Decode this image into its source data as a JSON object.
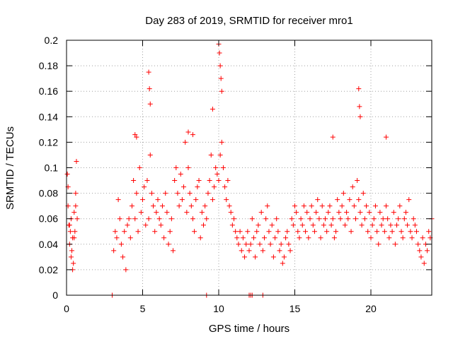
{
  "chart_data": {
    "type": "scatter",
    "title": "Day 283 of 2019, SRMTID for receiver mro1",
    "xlabel": "GPS time / hours",
    "ylabel": "SRMTID / TECUs",
    "xlim": [
      0,
      24
    ],
    "ylim": [
      0,
      0.2
    ],
    "x_ticks": [
      0,
      5,
      10,
      15,
      20
    ],
    "x_tick_labels": [
      "0",
      "5",
      "10",
      "15",
      "20"
    ],
    "y_ticks": [
      0,
      0.02,
      0.04,
      0.06,
      0.08,
      0.1,
      0.12,
      0.14,
      0.16,
      0.18,
      0.2
    ],
    "y_tick_labels": [
      "0",
      "0.02",
      "0.04",
      "0.06",
      "0.08",
      "0.1",
      "0.12",
      "0.14",
      "0.16",
      "0.18",
      "0.2"
    ],
    "grid": true,
    "marker": "+",
    "color": "#ff0000",
    "series": [
      {
        "name": "SRMTID",
        "x": [
          0.05,
          0.1,
          0.15,
          0.2,
          0.25,
          0.3,
          0.35,
          0.4,
          0.45,
          0.5,
          0.55,
          0.6,
          0.65,
          0.7,
          0.1,
          0.3,
          0.5,
          0.6,
          0.4,
          0.2,
          3.1,
          3.2,
          3.3,
          3.4,
          3.5,
          3.6,
          3.7,
          3.8,
          3.9,
          4.0,
          4.1,
          4.2,
          4.3,
          4.4,
          4.5,
          4.6,
          4.7,
          4.8,
          4.9,
          5.0,
          5.1,
          5.2,
          5.3,
          5.4,
          5.5,
          5.6,
          5.7,
          5.8,
          5.9,
          6.0,
          6.1,
          6.2,
          6.3,
          6.4,
          6.5,
          6.6,
          6.7,
          6.8,
          6.9,
          7.0,
          7.1,
          7.2,
          7.3,
          7.4,
          7.5,
          7.6,
          7.7,
          7.8,
          7.9,
          8.0,
          8.1,
          8.2,
          8.3,
          8.4,
          8.5,
          8.6,
          8.7,
          8.8,
          8.9,
          9.0,
          9.1,
          9.2,
          9.3,
          9.4,
          9.5,
          9.6,
          9.7,
          9.8,
          9.9,
          10.0,
          10.1,
          10.2,
          10.3,
          10.4,
          10.5,
          10.6,
          10.7,
          10.8,
          10.9,
          11.0,
          11.1,
          11.2,
          11.3,
          11.4,
          11.5,
          11.6,
          11.7,
          11.8,
          11.9,
          12.0,
          12.1,
          12.2,
          12.3,
          12.4,
          12.5,
          12.6,
          12.7,
          12.8,
          12.9,
          13.0,
          13.1,
          13.2,
          13.3,
          13.4,
          13.5,
          13.6,
          13.7,
          13.8,
          13.9,
          14.0,
          14.1,
          14.2,
          14.3,
          14.4,
          14.5,
          14.6,
          14.7,
          14.8,
          14.9,
          15.0,
          15.1,
          15.2,
          15.3,
          15.4,
          15.5,
          15.6,
          15.7,
          15.8,
          15.9,
          16.0,
          16.1,
          16.2,
          16.3,
          16.4,
          16.5,
          16.6,
          16.7,
          16.8,
          16.9,
          17.0,
          17.1,
          17.2,
          17.3,
          17.4,
          17.5,
          17.6,
          17.7,
          17.8,
          17.9,
          18.0,
          18.1,
          18.2,
          18.3,
          18.4,
          18.5,
          18.6,
          18.7,
          18.8,
          18.9,
          19.0,
          19.1,
          19.2,
          19.3,
          19.4,
          19.5,
          19.6,
          19.7,
          19.8,
          19.9,
          20.0,
          20.1,
          20.2,
          20.3,
          20.4,
          20.5,
          20.6,
          20.7,
          20.8,
          20.9,
          21.0,
          21.1,
          21.2,
          21.3,
          21.4,
          21.5,
          21.6,
          21.7,
          21.8,
          21.9,
          22.0,
          22.1,
          22.2,
          22.3,
          22.4,
          22.5,
          22.6,
          22.7,
          22.8,
          22.9,
          23.0,
          23.1,
          23.2,
          23.3,
          23.4,
          23.5,
          23.6,
          23.7,
          23.8,
          23.9,
          24.0,
          5.4,
          5.45,
          5.5,
          10.0,
          10.05,
          10.1,
          10.15,
          10.2,
          9.6,
          19.2,
          19.25,
          19.3,
          17.5,
          21.0,
          8.0,
          8.3,
          4.5,
          4.6,
          3.0,
          12.0,
          12.1,
          12.2,
          9.2,
          12.9
        ],
        "y": [
          0.095,
          0.07,
          0.055,
          0.04,
          0.05,
          0.06,
          0.035,
          0.045,
          0.025,
          0.065,
          0.05,
          0.08,
          0.105,
          0.06,
          0.085,
          0.03,
          0.045,
          0.07,
          0.02,
          0.055,
          0.035,
          0.05,
          0.045,
          0.075,
          0.06,
          0.04,
          0.03,
          0.05,
          0.02,
          0.055,
          0.06,
          0.045,
          0.07,
          0.09,
          0.06,
          0.08,
          0.05,
          0.1,
          0.065,
          0.075,
          0.085,
          0.055,
          0.09,
          0.06,
          0.11,
          0.08,
          0.07,
          0.05,
          0.065,
          0.075,
          0.06,
          0.055,
          0.07,
          0.045,
          0.08,
          0.065,
          0.04,
          0.05,
          0.06,
          0.035,
          0.09,
          0.1,
          0.08,
          0.07,
          0.095,
          0.075,
          0.085,
          0.12,
          0.065,
          0.1,
          0.08,
          0.07,
          0.06,
          0.05,
          0.075,
          0.085,
          0.09,
          0.045,
          0.065,
          0.055,
          0.07,
          0.06,
          0.08,
          0.09,
          0.11,
          0.075,
          0.085,
          0.1,
          0.095,
          0.09,
          0.11,
          0.12,
          0.1,
          0.085,
          0.075,
          0.09,
          0.07,
          0.065,
          0.055,
          0.06,
          0.05,
          0.045,
          0.04,
          0.05,
          0.035,
          0.045,
          0.03,
          0.04,
          0.05,
          0.035,
          0.04,
          0.06,
          0.045,
          0.03,
          0.05,
          0.055,
          0.04,
          0.065,
          0.035,
          0.045,
          0.06,
          0.07,
          0.05,
          0.04,
          0.055,
          0.03,
          0.045,
          0.06,
          0.05,
          0.035,
          0.04,
          0.025,
          0.03,
          0.045,
          0.05,
          0.04,
          0.035,
          0.06,
          0.055,
          0.07,
          0.065,
          0.05,
          0.045,
          0.06,
          0.055,
          0.07,
          0.05,
          0.065,
          0.045,
          0.06,
          0.07,
          0.055,
          0.05,
          0.065,
          0.075,
          0.06,
          0.045,
          0.07,
          0.055,
          0.06,
          0.05,
          0.065,
          0.07,
          0.055,
          0.06,
          0.045,
          0.05,
          0.075,
          0.065,
          0.06,
          0.07,
          0.08,
          0.055,
          0.065,
          0.06,
          0.075,
          0.05,
          0.085,
          0.07,
          0.06,
          0.09,
          0.075,
          0.065,
          0.055,
          0.08,
          0.06,
          0.07,
          0.05,
          0.065,
          0.045,
          0.055,
          0.06,
          0.07,
          0.05,
          0.04,
          0.065,
          0.055,
          0.06,
          0.05,
          0.07,
          0.06,
          0.045,
          0.055,
          0.05,
          0.065,
          0.04,
          0.055,
          0.06,
          0.07,
          0.05,
          0.045,
          0.06,
          0.065,
          0.055,
          0.075,
          0.05,
          0.045,
          0.06,
          0.055,
          0.05,
          0.04,
          0.035,
          0.03,
          0.045,
          0.025,
          0.04,
          0.035,
          0.05,
          0.045,
          0.06,
          0.175,
          0.162,
          0.15,
          0.197,
          0.19,
          0.18,
          0.17,
          0.16,
          0.146,
          0.162,
          0.148,
          0.14,
          0.124,
          0.124,
          0.128,
          0.126,
          0.126,
          0.124,
          0,
          0,
          0,
          0,
          0,
          0
        ]
      }
    ]
  }
}
